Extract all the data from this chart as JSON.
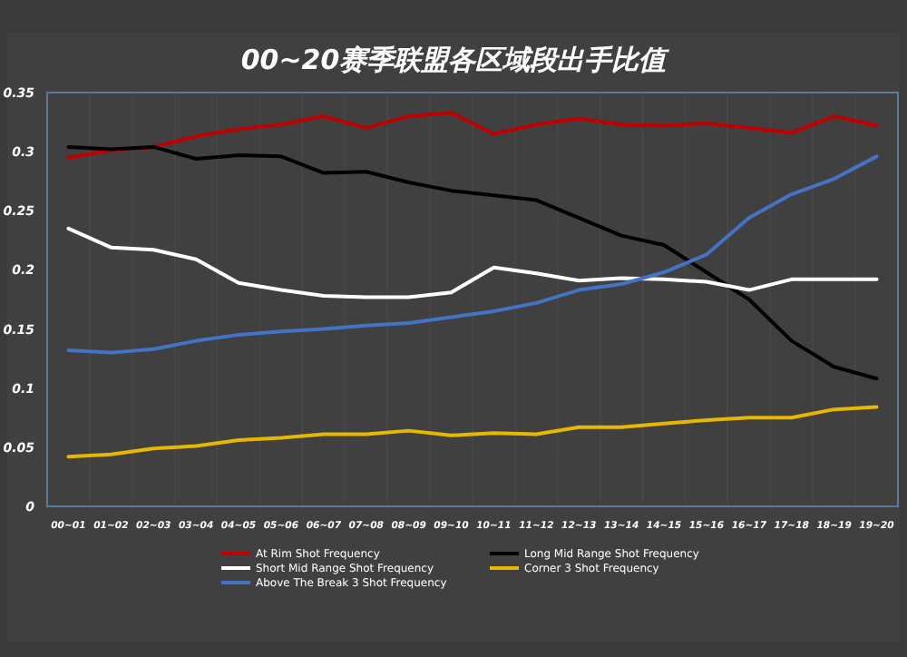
{
  "chart_data": {
    "type": "line",
    "title": "00~20赛季联盟各区域段出手比值",
    "categories": [
      "00~01",
      "01~02",
      "02~03",
      "03~04",
      "04~05",
      "05~06",
      "06~07",
      "07~08",
      "08~09",
      "09~10",
      "10~11",
      "11~12",
      "12~13",
      "13~14",
      "14~15",
      "15~16",
      "16~17",
      "17~18",
      "18~19",
      "19~20"
    ],
    "series": [
      {
        "name": "At Rim Shot Frequency",
        "color": "#c00000",
        "values": [
          0.295,
          0.301,
          0.304,
          0.313,
          0.319,
          0.323,
          0.33,
          0.32,
          0.33,
          0.333,
          0.315,
          0.323,
          0.328,
          0.323,
          0.322,
          0.324,
          0.32,
          0.316,
          0.33,
          0.322
        ]
      },
      {
        "name": "Long Mid Range Shot Frequency",
        "color": "#000000",
        "values": [
          0.304,
          0.302,
          0.304,
          0.294,
          0.297,
          0.296,
          0.282,
          0.283,
          0.274,
          0.267,
          0.263,
          0.259,
          0.244,
          0.229,
          0.221,
          0.198,
          0.175,
          0.14,
          0.118,
          0.108
        ]
      },
      {
        "name": "Short Mid Range Shot Frequency",
        "color": "#ffffff",
        "values": [
          0.235,
          0.219,
          0.217,
          0.209,
          0.189,
          0.183,
          0.178,
          0.177,
          0.177,
          0.181,
          0.202,
          0.197,
          0.191,
          0.193,
          0.192,
          0.19,
          0.183,
          0.192,
          0.192,
          0.192
        ]
      },
      {
        "name": "Corner 3 Shot Frequency",
        "color": "#e6b800",
        "values": [
          0.042,
          0.044,
          0.049,
          0.051,
          0.056,
          0.058,
          0.061,
          0.061,
          0.064,
          0.06,
          0.062,
          0.061,
          0.067,
          0.067,
          0.07,
          0.073,
          0.075,
          0.075,
          0.082,
          0.084
        ]
      },
      {
        "name": "Above The Break 3 Shot Frequency",
        "color": "#4472c4",
        "values": [
          0.132,
          0.13,
          0.133,
          0.14,
          0.145,
          0.148,
          0.15,
          0.153,
          0.155,
          0.16,
          0.165,
          0.172,
          0.183,
          0.188,
          0.198,
          0.213,
          0.244,
          0.264,
          0.277,
          0.296
        ]
      }
    ],
    "ylim": [
      0,
      0.35
    ],
    "yticks": [
      0,
      0.05,
      0.1,
      0.15,
      0.2,
      0.25,
      0.3,
      0.35
    ],
    "grid": "x",
    "legend": "bottom",
    "marker": "none",
    "line_style": "solid"
  }
}
